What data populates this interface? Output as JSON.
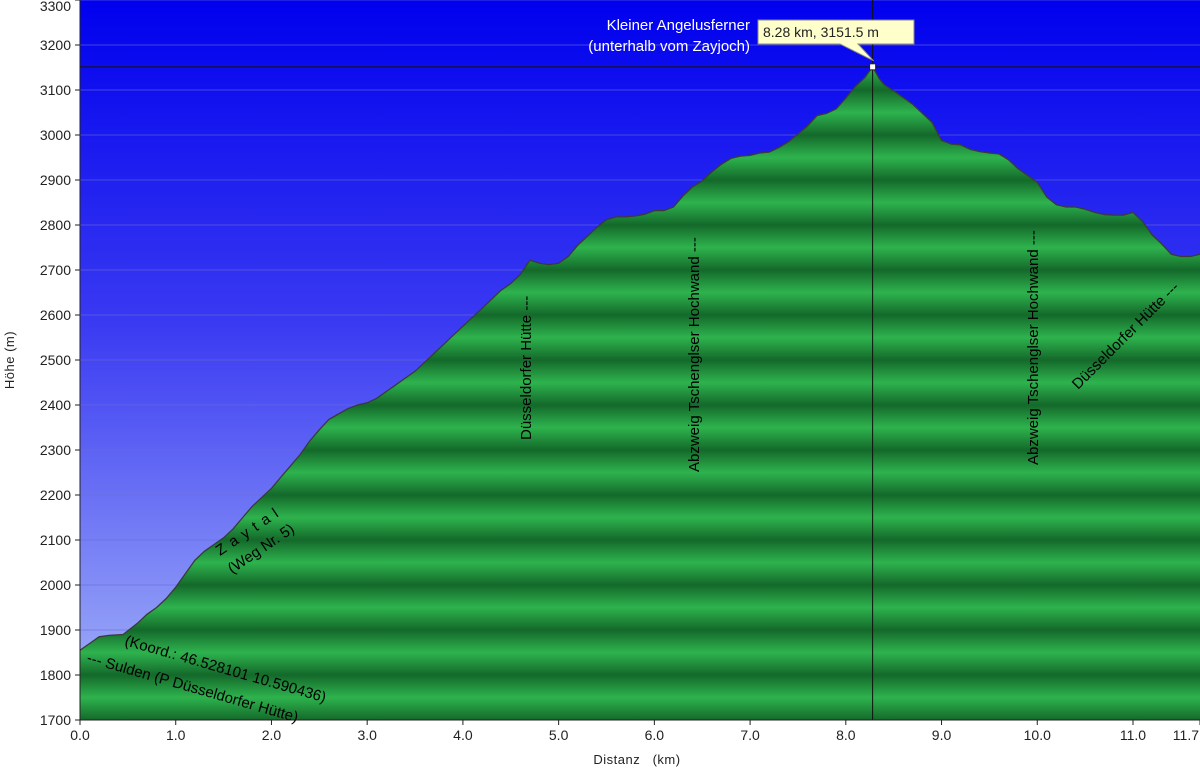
{
  "chart_data": {
    "type": "area",
    "title": "",
    "xlabel": "Distanz   (km)",
    "ylabel": "Höhe (m)",
    "xlim": [
      0.0,
      11.7
    ],
    "ylim": [
      1700,
      3300
    ],
    "x_ticks": [
      "0.0",
      "1.0",
      "2.0",
      "3.0",
      "4.0",
      "5.0",
      "6.0",
      "7.0",
      "8.0",
      "9.0",
      "10.0",
      "11.0",
      "11.7"
    ],
    "y_ticks": [
      "1700",
      "1800",
      "1900",
      "2000",
      "2100",
      "2200",
      "2300",
      "2400",
      "2500",
      "2600",
      "2700",
      "2800",
      "2900",
      "3000",
      "3100",
      "3200",
      "3300"
    ],
    "grid": true,
    "colors": {
      "sky_top": "#0000ee",
      "sky_bottom": "#a8b8f8",
      "fill_light": "#2eb34e",
      "fill_dark": "#14692a",
      "outline": "#3a3a3a",
      "tooltip_bg": "#ffffcc"
    },
    "series": [
      {
        "x": [
          0.0,
          0.1,
          0.2,
          0.3,
          0.45,
          0.6,
          0.7,
          0.8,
          0.9,
          1.0,
          1.1,
          1.2,
          1.3,
          1.4,
          1.5,
          1.6,
          1.7,
          1.8,
          1.9,
          2.0,
          2.1,
          2.2,
          2.3,
          2.4,
          2.5,
          2.6,
          2.7,
          2.8,
          2.9,
          3.0,
          3.1,
          3.2,
          3.3,
          3.4,
          3.5,
          3.6,
          3.7,
          3.8,
          3.9,
          4.0,
          4.1,
          4.2,
          4.3,
          4.4,
          4.5,
          4.6,
          4.7,
          4.8,
          4.9,
          5.0,
          5.1,
          5.2,
          5.3,
          5.4,
          5.5,
          5.6,
          5.7,
          5.8,
          5.9,
          6.0,
          6.1,
          6.2,
          6.3,
          6.4,
          6.5,
          6.6,
          6.7,
          6.8,
          6.9,
          7.0,
          7.1,
          7.2,
          7.3,
          7.4,
          7.5,
          7.6,
          7.7,
          7.8,
          7.9,
          8.0,
          8.1,
          8.2,
          8.28,
          8.35,
          8.4,
          8.5,
          8.6,
          8.7,
          8.8,
          8.9,
          9.0,
          9.1,
          9.2,
          9.3,
          9.4,
          9.5,
          9.6,
          9.7,
          9.8,
          9.9,
          10.0,
          10.1,
          10.2,
          10.3,
          10.4,
          10.5,
          10.6,
          10.7,
          10.8,
          10.9,
          11.0,
          11.1,
          11.2,
          11.3,
          11.4,
          11.5,
          11.6,
          11.7
        ],
        "y": [
          1855,
          1870,
          1885,
          1888,
          1890,
          1915,
          1935,
          1950,
          1970,
          1995,
          2025,
          2055,
          2075,
          2090,
          2105,
          2125,
          2150,
          2175,
          2195,
          2215,
          2240,
          2265,
          2290,
          2320,
          2345,
          2368,
          2380,
          2392,
          2400,
          2405,
          2415,
          2430,
          2445,
          2460,
          2475,
          2495,
          2515,
          2535,
          2555,
          2575,
          2595,
          2615,
          2635,
          2655,
          2670,
          2690,
          2722,
          2715,
          2712,
          2715,
          2730,
          2755,
          2775,
          2795,
          2812,
          2818,
          2818,
          2820,
          2824,
          2832,
          2832,
          2840,
          2865,
          2885,
          2898,
          2918,
          2935,
          2948,
          2953,
          2955,
          2960,
          2962,
          2972,
          2985,
          3002,
          3020,
          3043,
          3048,
          3058,
          3082,
          3108,
          3128,
          3151.5,
          3125,
          3112,
          3098,
          3083,
          3068,
          3048,
          3028,
          2988,
          2980,
          2978,
          2968,
          2963,
          2960,
          2958,
          2945,
          2925,
          2910,
          2895,
          2862,
          2845,
          2840,
          2840,
          2835,
          2828,
          2823,
          2822,
          2822,
          2828,
          2808,
          2778,
          2758,
          2735,
          2730,
          2730,
          2735
        ]
      }
    ],
    "annotations": [
      {
        "x": 0.0,
        "y": 1855,
        "text": "--- Sulden (P Düsseldorfer Hütte)"
      },
      {
        "x": 0.45,
        "y": 1890,
        "text": "(Koord.: 46.528101  10.590436)"
      },
      {
        "x": 1.5,
        "y": 2100,
        "text": "Z a y t a l"
      },
      {
        "x": 1.5,
        "y": 2100,
        "text": "(Weg Nr. 5)"
      },
      {
        "x": 4.7,
        "y": 2722,
        "text": "Düsseldorfer Hütte ---"
      },
      {
        "x": 6.45,
        "y": 2890,
        "text": "Abzweig Tschenglser Hochwand ---"
      },
      {
        "x": 9.95,
        "y": 2900,
        "text": "Abzweig Tschenglser Hochwand ---"
      },
      {
        "x": 11.6,
        "y": 2730,
        "text": "Düsseldorfer Hütte ---"
      }
    ],
    "peak": {
      "x": 8.28,
      "y": 3151.5,
      "name_line1": "Kleiner Angelusferner",
      "name_line2": "(unterhalb vom Zayjoch)",
      "tooltip": "8.28 km, 3151.5 m"
    }
  }
}
